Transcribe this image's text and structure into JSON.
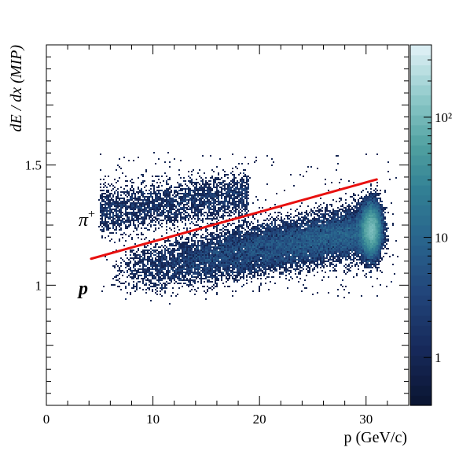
{
  "chart_data": {
    "type": "heatmap",
    "title": "",
    "xlabel": "p (GeV/c)",
    "ylabel": "dE / dx (MIP)",
    "xlim": [
      0,
      34
    ],
    "ylim": [
      0.5,
      2.0
    ],
    "xticks": [
      0,
      10,
      20,
      30
    ],
    "xtick_labels": [
      "0",
      "10",
      "20",
      "30"
    ],
    "yticks": [
      1.0,
      1.5
    ],
    "ytick_labels": [
      "1",
      "1.5"
    ],
    "colorbar": {
      "scale": "log",
      "range": [
        0.4,
        400
      ],
      "ticks": [
        1,
        10,
        100
      ],
      "tick_labels": [
        "1",
        "10",
        "10²"
      ]
    },
    "bands": [
      {
        "label": "π⁺",
        "p_range": [
          5,
          19
        ],
        "dedx_mean": 1.33,
        "dedx_rms": 0.05,
        "relative_density": "sparse"
      },
      {
        "label": "p",
        "p_range": [
          6,
          31
        ],
        "dedx_start": 1.05,
        "dedx_end": 1.23,
        "dedx_rms": 0.05,
        "relative_density": "dense"
      }
    ],
    "hotspot": {
      "p": 30.5,
      "dedx": 1.23
    },
    "separation_line": {
      "x": [
        4.2,
        31.0
      ],
      "y": [
        1.11,
        1.44
      ],
      "color": "#e8100f"
    },
    "annotations": [
      {
        "text": "π",
        "superscript": "+",
        "x": 3.1,
        "y": 1.25
      },
      {
        "text": "p",
        "x": 3.0,
        "y": 0.97
      }
    ],
    "grid": false,
    "legend": "none"
  }
}
